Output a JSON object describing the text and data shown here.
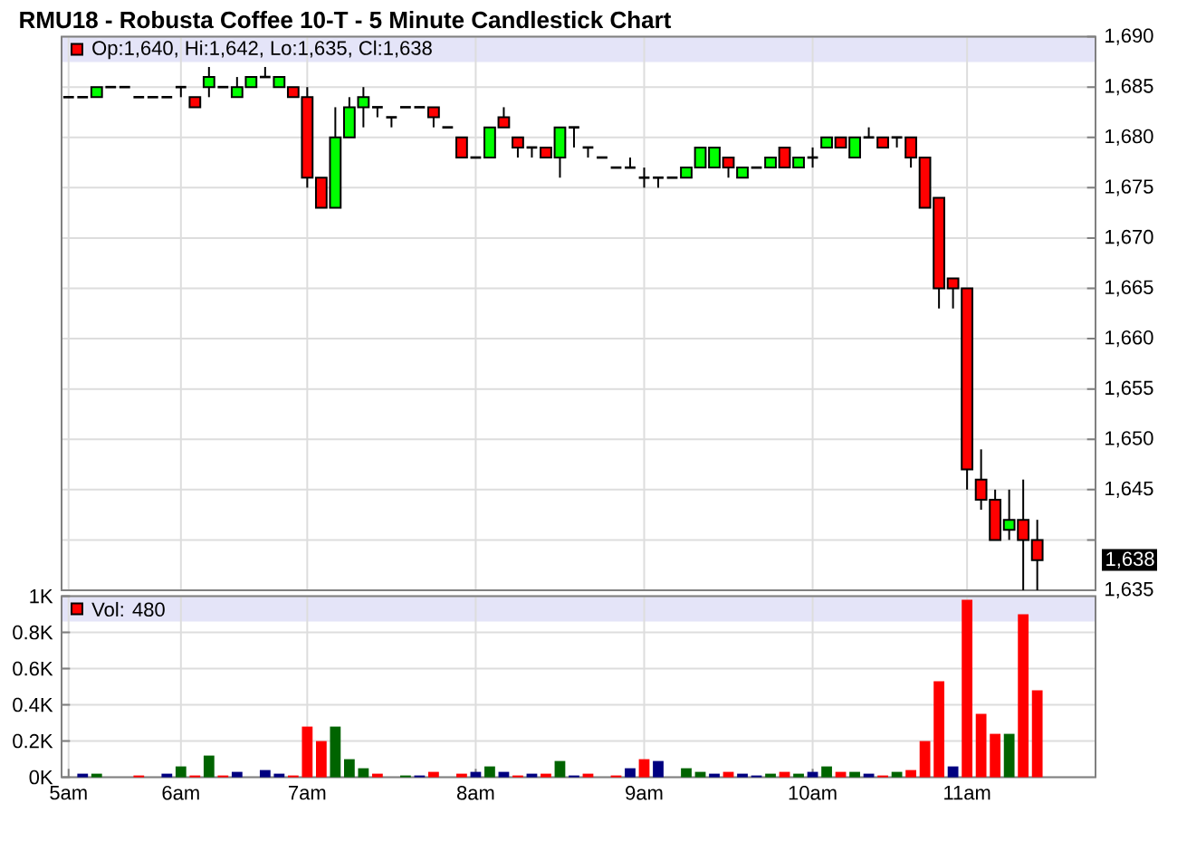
{
  "chart_data": [
    {
      "type": "candlestick",
      "title": "RMU18 - Robusta Coffee 10-T - 5 Minute Candlestick Chart",
      "categories": [
        null,
        null,
        null,
        null,
        null,
        null,
        null,
        null,
        null,
        null,
        null,
        null,
        null,
        null,
        null,
        null,
        null,
        null,
        null,
        null,
        null,
        null,
        null,
        null,
        null,
        null,
        null,
        null,
        null,
        null,
        null,
        null,
        null,
        null,
        null,
        null,
        null,
        null,
        null,
        null,
        null,
        null,
        null,
        null,
        null,
        null,
        null,
        null,
        null,
        null,
        null,
        null,
        null,
        null,
        null,
        null,
        null,
        null,
        null,
        null,
        null,
        null,
        null,
        null,
        null,
        null,
        null,
        null,
        null,
        null
      ],
      "ohlc": [
        [
          1684,
          1684,
          1684,
          1684
        ],
        [
          1684,
          1684,
          1684,
          1684
        ],
        [
          1684,
          1685,
          1684,
          1685
        ],
        [
          1685,
          1685,
          1685,
          1685
        ],
        [
          1685,
          1685,
          1685,
          1685
        ],
        [
          1684,
          1684,
          1684,
          1684
        ],
        [
          1684,
          1684,
          1684,
          1684
        ],
        [
          1684,
          1684,
          1684,
          1684
        ],
        [
          1685,
          1685,
          1684,
          1685
        ],
        [
          1684,
          1684,
          1683,
          1683
        ],
        [
          1685,
          1687,
          1684,
          1686
        ],
        [
          1685,
          1685,
          1685,
          1685
        ],
        [
          1684,
          1686,
          1684,
          1685
        ],
        [
          1685,
          1686,
          1685,
          1686
        ],
        [
          1686,
          1687,
          1686,
          1686
        ],
        [
          1685,
          1686,
          1685,
          1686
        ],
        [
          1685,
          1685,
          1684,
          1684
        ],
        [
          1684,
          1685,
          1675,
          1676
        ],
        [
          1676,
          1676,
          1673,
          1673
        ],
        [
          1673,
          1683,
          1673,
          1680
        ],
        [
          1680,
          1684,
          1680,
          1683
        ],
        [
          1683,
          1685,
          1681,
          1684
        ],
        [
          1683,
          1683,
          1682,
          1683
        ],
        [
          1682,
          1682,
          1681,
          1682
        ],
        [
          1683,
          1683,
          1683,
          1683
        ],
        [
          1683,
          1683,
          1683,
          1683
        ],
        [
          1683,
          1683,
          1681,
          1682
        ],
        [
          1681,
          1681,
          1681,
          1681
        ],
        [
          1680,
          1680,
          1678,
          1678
        ],
        [
          1678,
          1678,
          1678,
          1678
        ],
        [
          1678,
          1681,
          1678,
          1681
        ],
        [
          1682,
          1683,
          1681,
          1681
        ],
        [
          1680,
          1680,
          1678,
          1679
        ],
        [
          1679,
          1679,
          1678,
          1679
        ],
        [
          1679,
          1679,
          1678,
          1678
        ],
        [
          1678,
          1681,
          1676,
          1681
        ],
        [
          1681,
          1681,
          1679,
          1681
        ],
        [
          1679,
          1679,
          1678,
          1679
        ],
        [
          1678,
          1678,
          1678,
          1678
        ],
        [
          1677,
          1677,
          1677,
          1677
        ],
        [
          1677,
          1678,
          1677,
          1677
        ],
        [
          1676,
          1677,
          1675,
          1676
        ],
        [
          1676,
          1676,
          1675,
          1676
        ],
        [
          1676,
          1676,
          1676,
          1676
        ],
        [
          1676,
          1677,
          1676,
          1677
        ],
        [
          1677,
          1679,
          1677,
          1679
        ],
        [
          1677,
          1679,
          1677,
          1679
        ],
        [
          1678,
          1678,
          1676,
          1677
        ],
        [
          1676,
          1677,
          1676,
          1677
        ],
        [
          1677,
          1677,
          1677,
          1677
        ],
        [
          1677,
          1678,
          1677,
          1678
        ],
        [
          1679,
          1679,
          1677,
          1677
        ],
        [
          1677,
          1678,
          1677,
          1678
        ],
        [
          1678,
          1679,
          1677,
          1678
        ],
        [
          1679,
          1680,
          1679,
          1680
        ],
        [
          1680,
          1680,
          1679,
          1679
        ],
        [
          1678,
          1680,
          1678,
          1680
        ],
        [
          1680,
          1681,
          1680,
          1680
        ],
        [
          1680,
          1680,
          1679,
          1679
        ],
        [
          1680,
          1680,
          1679,
          1680
        ],
        [
          1680,
          1680,
          1677,
          1678
        ],
        [
          1678,
          1678,
          1673,
          1673
        ],
        [
          1674,
          1674,
          1663,
          1665
        ],
        [
          1666,
          1666,
          1663,
          1665
        ],
        [
          1665,
          1665,
          1645,
          1647
        ],
        [
          1646,
          1649,
          1643,
          1644
        ],
        [
          1644,
          1645,
          1640,
          1640
        ],
        [
          1641,
          1645,
          1640,
          1642
        ],
        [
          1642,
          1646,
          1635,
          1640
        ],
        [
          1640,
          1642,
          1635,
          1638
        ]
      ],
      "colors": [
        "#000000",
        "#000000",
        "#00ff00",
        "#000000",
        "#000000",
        "#000000",
        "#000000",
        "#000000",
        "#000000",
        "#ff0000",
        "#00ff00",
        "#000000",
        "#00ff00",
        "#00ff00",
        "#000000",
        "#00ff00",
        "#ff0000",
        "#ff0000",
        "#ff0000",
        "#00ff00",
        "#00ff00",
        "#00ff00",
        "#000000",
        "#000000",
        "#000000",
        "#000000",
        "#ff0000",
        "#000000",
        "#ff0000",
        "#000000",
        "#00ff00",
        "#ff0000",
        "#ff0000",
        "#000000",
        "#ff0000",
        "#00ff00",
        "#000000",
        "#000000",
        "#000000",
        "#000000",
        "#000000",
        "#000000",
        "#000000",
        "#000000",
        "#00ff00",
        "#00ff00",
        "#00ff00",
        "#ff0000",
        "#00ff00",
        "#000000",
        "#00ff00",
        "#ff0000",
        "#00ff00",
        "#000000",
        "#00ff00",
        "#ff0000",
        "#00ff00",
        "#000000",
        "#ff0000",
        "#000000",
        "#ff0000",
        "#ff0000",
        "#ff0000",
        "#ff0000",
        "#ff0000",
        "#ff0000",
        "#ff0000",
        "#00ff00",
        "#ff0000",
        "#ff0000"
      ],
      "ylim": [
        1635,
        1690
      ],
      "yticks": [
        {
          "value": 1635,
          "label": "1,635"
        },
        {
          "value": 1640,
          "label": null
        },
        {
          "value": 1645,
          "label": "1,645"
        },
        {
          "value": 1650,
          "label": "1,650"
        },
        {
          "value": 1655,
          "label": "1,655"
        },
        {
          "value": 1660,
          "label": "1,660"
        },
        {
          "value": 1665,
          "label": "1,665"
        },
        {
          "value": 1670,
          "label": "1,670"
        },
        {
          "value": 1675,
          "label": "1,675"
        },
        {
          "value": 1680,
          "label": "1,680"
        },
        {
          "value": 1685,
          "label": "1,685"
        },
        {
          "value": 1690,
          "label": "1,690"
        }
      ],
      "grid": true,
      "tick_labels": "y",
      "annotations": [
        "Op:1,640, Hi:1,642, Lo:1,635, Cl:1,638",
        "1,638"
      ]
    },
    {
      "type": "bar",
      "categories": [
        "5am",
        null,
        null,
        null,
        null,
        null,
        null,
        null,
        "6am",
        null,
        null,
        null,
        null,
        null,
        null,
        null,
        null,
        "7am",
        null,
        null,
        null,
        null,
        null,
        null,
        null,
        null,
        null,
        null,
        null,
        "8am",
        null,
        null,
        null,
        null,
        null,
        null,
        null,
        null,
        null,
        null,
        null,
        "9am",
        null,
        null,
        null,
        null,
        null,
        null,
        null,
        null,
        null,
        null,
        null,
        "10am",
        null,
        null,
        null,
        null,
        null,
        null,
        null,
        null,
        null,
        null,
        "11am",
        null,
        null,
        null,
        null,
        null
      ],
      "values": [
        null,
        20,
        20,
        null,
        null,
        10,
        null,
        20,
        60,
        10,
        120,
        10,
        30,
        null,
        40,
        20,
        10,
        280,
        200,
        280,
        100,
        50,
        20,
        null,
        10,
        10,
        30,
        null,
        20,
        30,
        60,
        30,
        10,
        20,
        20,
        90,
        10,
        20,
        null,
        10,
        50,
        100,
        90,
        null,
        50,
        30,
        20,
        30,
        20,
        10,
        20,
        30,
        20,
        30,
        60,
        30,
        30,
        20,
        10,
        30,
        40,
        200,
        530,
        60,
        980,
        350,
        240,
        240,
        900,
        480
      ],
      "colors": [
        null,
        "#000080",
        "#006400",
        null,
        null,
        "#ff0000",
        null,
        "#000080",
        "#006400",
        "#ff0000",
        "#006400",
        "#ff0000",
        "#000080",
        null,
        "#000080",
        "#000080",
        "#ff0000",
        "#ff0000",
        "#ff0000",
        "#006400",
        "#006400",
        "#006400",
        "#ff0000",
        null,
        "#006400",
        "#000080",
        "#ff0000",
        null,
        "#ff0000",
        "#000080",
        "#006400",
        "#000080",
        "#ff0000",
        "#000080",
        "#ff0000",
        "#006400",
        "#000080",
        "#ff0000",
        null,
        "#ff0000",
        "#000080",
        "#ff0000",
        "#000080",
        null,
        "#006400",
        "#006400",
        "#000080",
        "#ff0000",
        "#000080",
        "#000080",
        "#006400",
        "#ff0000",
        "#006400",
        "#000080",
        "#006400",
        "#ff0000",
        "#006400",
        "#000080",
        "#ff0000",
        "#006400",
        "#ff0000",
        "#ff0000",
        "#ff0000",
        "#000080",
        "#ff0000",
        "#ff0000",
        "#ff0000",
        "#006400",
        "#ff0000",
        "#ff0000"
      ],
      "ylim": [
        0,
        1000
      ],
      "yticks": [
        {
          "value": 0,
          "label": "0K"
        },
        {
          "value": 200,
          "label": "0.2K"
        },
        {
          "value": 400,
          "label": "0.4K"
        },
        {
          "value": 600,
          "label": "0.6K"
        },
        {
          "value": 800,
          "label": "0.8K"
        },
        {
          "value": 1000,
          "label": "1K"
        }
      ],
      "grid": true,
      "annotations": [
        "Vol: 480"
      ]
    }
  ]
}
